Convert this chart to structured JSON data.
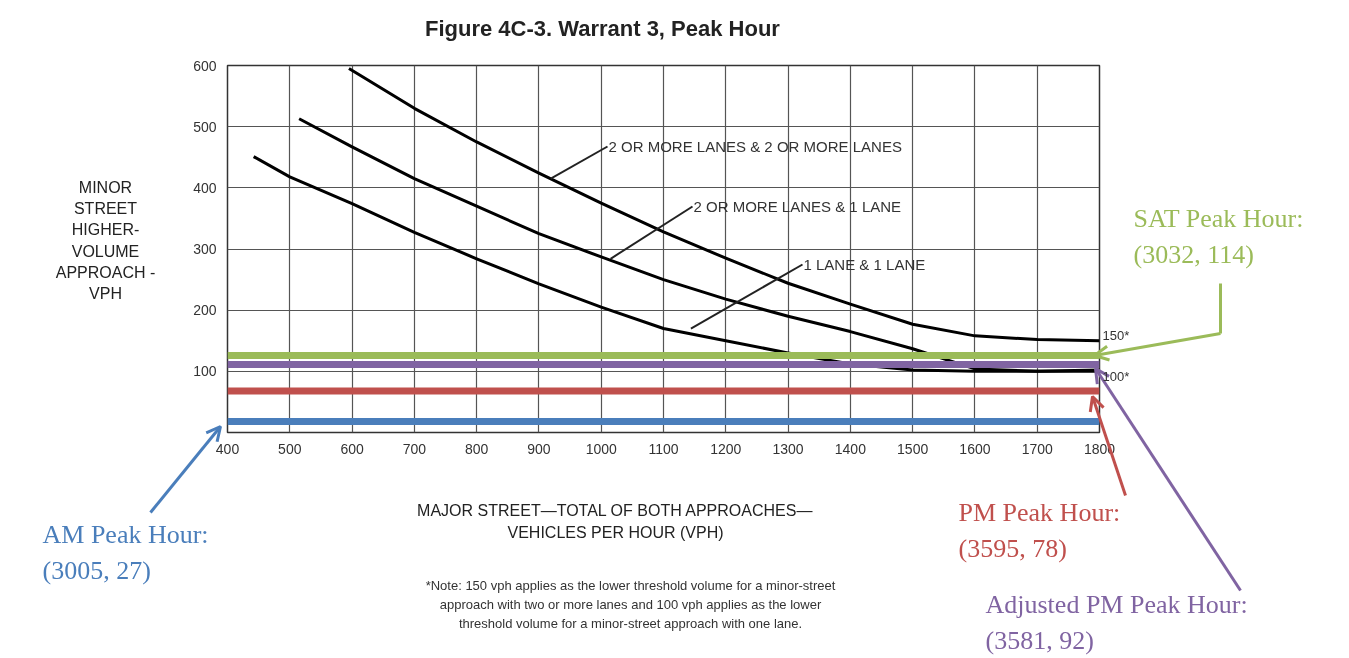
{
  "chart_data": {
    "type": "line",
    "title": "Figure 4C-3.  Warrant 3, Peak Hour",
    "xlabel": "MAJOR STREET—TOTAL OF BOTH APPROACHES—\nVEHICLES PER HOUR (VPH)",
    "ylabel": "MINOR\nSTREET\nHIGHER-\nVOLUME\nAPPROACH -\nVPH",
    "xlim": [
      400,
      1800
    ],
    "xticks": [
      400,
      500,
      600,
      700,
      800,
      900,
      1000,
      1100,
      1200,
      1300,
      1400,
      1500,
      1600,
      1700,
      1800
    ],
    "ylim": [
      0,
      600
    ],
    "yticks": [
      100,
      200,
      300,
      400,
      500,
      600
    ],
    "grid": true,
    "marker": "none",
    "line_style": "solid",
    "series": [
      {
        "color": "#000000",
        "x": [
          595,
          700,
          800,
          900,
          1000,
          1100,
          1200,
          1300,
          1400,
          1500,
          1600,
          1700,
          1800
        ],
        "values": [
          595,
          530,
          475,
          424,
          375,
          328,
          285,
          244,
          210,
          177,
          158,
          152,
          150
        ]
      },
      {
        "color": "#000000",
        "x": [
          515,
          600,
          700,
          800,
          900,
          1000,
          1100,
          1200,
          1300,
          1400,
          1500,
          1600,
          1700,
          1800
        ],
        "values": [
          513,
          467,
          415,
          370,
          325,
          287,
          250,
          218,
          190,
          165,
          137,
          104,
          100,
          102
        ]
      },
      {
        "color": "#000000",
        "x": [
          442,
          500,
          600,
          700,
          800,
          900,
          1000,
          1100,
          1200,
          1300,
          1400,
          1500,
          1600,
          1700,
          1800
        ],
        "values": [
          451,
          418,
          374,
          327,
          284,
          243,
          205,
          170,
          150,
          130,
          112,
          102,
          100,
          100,
          100
        ]
      }
    ],
    "ref_lines": [
      {
        "axis": "y",
        "value": 126,
        "color": "#9bbb59",
        "label": "SAT Peak Hour:\n(3032, 114)"
      },
      {
        "axis": "y",
        "value": 111,
        "color": "#8064a2",
        "label": "Adjusted PM Peak Hour:\n(3581, 92)"
      },
      {
        "axis": "y",
        "value": 68,
        "color": "#c0504d",
        "label": "PM Peak Hour:\n(3595, 78)"
      },
      {
        "axis": "y",
        "value": 18,
        "color": "#4a7ebb",
        "label": "AM Peak Hour:\n(3005, 27)"
      }
    ],
    "annotations": [
      {
        "text": "2 OR MORE LANES & 2 OR MORE LANES",
        "x": 919,
        "y": 415
      },
      {
        "text": "2 OR MORE LANES & 1 LANE",
        "x": 1015,
        "y": 284
      },
      {
        "text": "1 LANE & 1 LANE",
        "x": 1144,
        "y": 170
      },
      {
        "text": "150*",
        "x": 1800,
        "y": 150
      },
      {
        "text": "100*",
        "x": 1800,
        "y": 100
      },
      "*Note: 150 vph applies as the lower threshold volume for a minor-street\napproach with two or more lanes and 100 vph applies as the lower\nthreshold volume for a minor-street approach with one lane."
    ]
  }
}
